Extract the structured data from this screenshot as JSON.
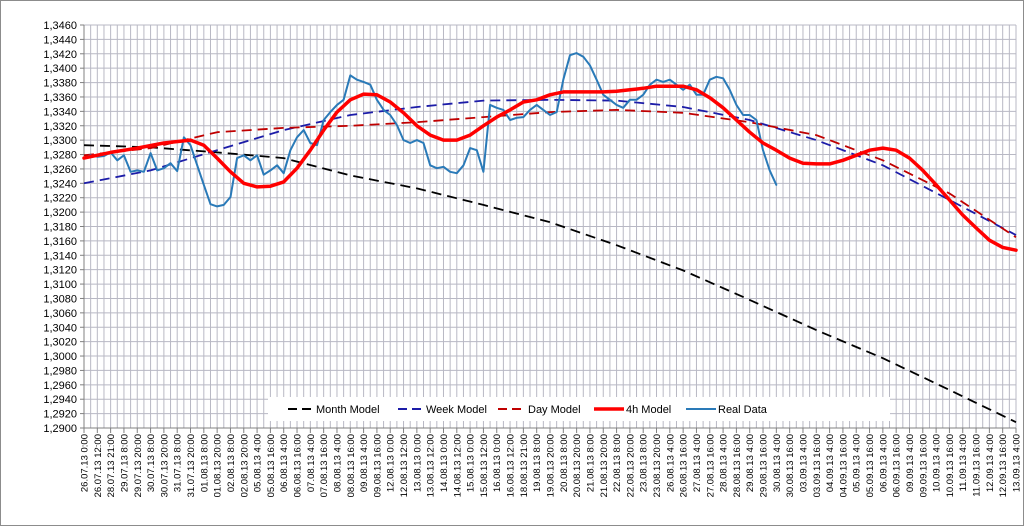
{
  "chart_data": {
    "type": "line",
    "title": "",
    "xlabel": "",
    "ylabel": "",
    "ylim": [
      1.29,
      1.346
    ],
    "y_step": 0.002,
    "grid": true,
    "legend_position": "bottom-center",
    "y_tick_labels": [
      "1,2900",
      "1,2920",
      "1,2940",
      "1,2960",
      "1,2980",
      "1,3000",
      "1,3020",
      "1,3040",
      "1,3060",
      "1,3080",
      "1,3100",
      "1,3120",
      "1,3140",
      "1,3160",
      "1,3180",
      "1,3200",
      "1,3220",
      "1,3240",
      "1,3260",
      "1,3280",
      "1,3300",
      "1,3320",
      "1,3340",
      "1,3360",
      "1,3380",
      "1,3400",
      "1,3420",
      "1,3440",
      "1,3460"
    ],
    "categories": [
      "26.07.13 0:00",
      "26.07.13 12:00",
      "28.07.13 21:00",
      "29.07.13 8:00",
      "29.07.13 20:00",
      "30.07.13 8:00",
      "30.07.13 20:00",
      "31.07.13 8:00",
      "31.07.13 20:00",
      "01.08.13 8:00",
      "01.08.13 20:00",
      "02.08.13 8:00",
      "02.08.13 20:00",
      "05.08.13 4:00",
      "05.08.13 16:00",
      "06.08.13 4:00",
      "06.08.13 16:00",
      "07.08.13 4:00",
      "07.08.13 16:00",
      "08.08.13 4:00",
      "08.08.13 16:00",
      "09.08.13 4:00",
      "09.08.13 16:00",
      "12.08.13 0:00",
      "12.08.13 12:00",
      "13.08.13 0:00",
      "13.08.13 12:00",
      "14.08.13 0:00",
      "14.08.13 12:00",
      "15.08.13 0:00",
      "15.08.13 12:00",
      "16.08.13 0:00",
      "16.08.13 12:00",
      "18.08.13 21:00",
      "19.08.13 8:00",
      "19.08.13 20:00",
      "20.08.13 8:00",
      "20.08.13 20:00",
      "21.08.13 8:00",
      "21.08.13 20:00",
      "22.08.13 8:00",
      "22.08.13 20:00",
      "23.08.13 8:00",
      "23.08.13 20:00",
      "26.08.13 4:00",
      "26.08.13 16:00",
      "27.08.13 4:00",
      "27.08.13 16:00",
      "28.08.13 4:00",
      "28.08.13 16:00",
      "29.08.13 4:00",
      "29.08.13 16:00",
      "30.08.13 4:00",
      "30.08.13 16:00",
      "03.09.13 4:00",
      "03.09.13 16:00",
      "04.09.13 4:00",
      "04.09.13 16:00",
      "05.09.13 4:00",
      "05.09.13 16:00",
      "06.09.13 4:00",
      "06.09.13 16:00",
      "09.09.13 4:00",
      "09.09.13 16:00",
      "10.09.13 4:00",
      "10.09.13 16:00",
      "11.09.13 4:00",
      "11.09.13 16:00",
      "12.09.13 4:00",
      "12.09.13 16:00",
      "13.09.13 4:00"
    ],
    "series": [
      {
        "name": "Month Model",
        "color": "#000000",
        "style": "dashed",
        "points": [
          [
            0,
            1.3293
          ],
          [
            5,
            1.329
          ],
          [
            10,
            1.3283
          ],
          [
            15,
            1.3275
          ],
          [
            20,
            1.3251
          ],
          [
            25,
            1.3233
          ],
          [
            30,
            1.321
          ],
          [
            35,
            1.3186
          ],
          [
            40,
            1.3154
          ],
          [
            45,
            1.3119
          ],
          [
            50,
            1.3078
          ],
          [
            55,
            1.3036
          ],
          [
            60,
            1.2997
          ],
          [
            65,
            1.2953
          ],
          [
            70,
            1.2908
          ]
        ]
      },
      {
        "name": "Week Model",
        "color": "#1c1ca8",
        "style": "dashed",
        "points": [
          [
            0,
            1.324
          ],
          [
            5,
            1.3258
          ],
          [
            10,
            1.3286
          ],
          [
            15,
            1.3314
          ],
          [
            20,
            1.3335
          ],
          [
            25,
            1.3346
          ],
          [
            30,
            1.3355
          ],
          [
            35,
            1.3356
          ],
          [
            40,
            1.3355
          ],
          [
            45,
            1.3346
          ],
          [
            50,
            1.3328
          ],
          [
            55,
            1.33
          ],
          [
            60,
            1.3265
          ],
          [
            65,
            1.3217
          ],
          [
            70,
            1.3168
          ]
        ]
      },
      {
        "name": "Day Model",
        "color": "#c00000",
        "style": "dashed",
        "points": [
          [
            0,
            1.3279
          ],
          [
            5,
            1.3289
          ],
          [
            10,
            1.3311
          ],
          [
            15,
            1.3317
          ],
          [
            20,
            1.332
          ],
          [
            25,
            1.3325
          ],
          [
            30,
            1.3332
          ],
          [
            35,
            1.3339
          ],
          [
            40,
            1.3342
          ],
          [
            45,
            1.3338
          ],
          [
            50,
            1.3325
          ],
          [
            55,
            1.3307
          ],
          [
            60,
            1.3272
          ],
          [
            65,
            1.3226
          ],
          [
            70,
            1.3165
          ]
        ]
      },
      {
        "name": "4h Model",
        "color": "#ff0000",
        "style": "thick",
        "points": [
          [
            0,
            1.3275
          ],
          [
            2,
            1.3283
          ],
          [
            4,
            1.3289
          ],
          [
            6,
            1.3296
          ],
          [
            8,
            1.33
          ],
          [
            9,
            1.3293
          ],
          [
            10,
            1.3275
          ],
          [
            11,
            1.3256
          ],
          [
            12,
            1.324
          ],
          [
            13,
            1.3235
          ],
          [
            14,
            1.3236
          ],
          [
            15,
            1.3242
          ],
          [
            16,
            1.3261
          ],
          [
            17,
            1.3286
          ],
          [
            18,
            1.3314
          ],
          [
            19,
            1.3339
          ],
          [
            20,
            1.3356
          ],
          [
            21,
            1.3364
          ],
          [
            22,
            1.3363
          ],
          [
            23,
            1.3353
          ],
          [
            24,
            1.3338
          ],
          [
            25,
            1.332
          ],
          [
            26,
            1.3307
          ],
          [
            27,
            1.33
          ],
          [
            28,
            1.33
          ],
          [
            29,
            1.3307
          ],
          [
            30,
            1.332
          ],
          [
            31,
            1.3332
          ],
          [
            32,
            1.3342
          ],
          [
            33,
            1.3353
          ],
          [
            34,
            1.3356
          ],
          [
            35,
            1.3363
          ],
          [
            36,
            1.3367
          ],
          [
            37,
            1.3367
          ],
          [
            38,
            1.3367
          ],
          [
            39,
            1.3367
          ],
          [
            40,
            1.3368
          ],
          [
            41,
            1.337
          ],
          [
            42,
            1.3372
          ],
          [
            43,
            1.3375
          ],
          [
            44,
            1.3375
          ],
          [
            45,
            1.3375
          ],
          [
            46,
            1.337
          ],
          [
            47,
            1.3359
          ],
          [
            48,
            1.3345
          ],
          [
            49,
            1.3328
          ],
          [
            50,
            1.3311
          ],
          [
            51,
            1.3296
          ],
          [
            52,
            1.3286
          ],
          [
            53,
            1.3275
          ],
          [
            54,
            1.3268
          ],
          [
            55,
            1.3267
          ],
          [
            56,
            1.3267
          ],
          [
            57,
            1.3272
          ],
          [
            58,
            1.3279
          ],
          [
            59,
            1.3286
          ],
          [
            60,
            1.3289
          ],
          [
            61,
            1.3286
          ],
          [
            62,
            1.3275
          ],
          [
            63,
            1.3258
          ],
          [
            64,
            1.3238
          ],
          [
            65,
            1.3217
          ],
          [
            66,
            1.3196
          ],
          [
            67,
            1.3178
          ],
          [
            68,
            1.3161
          ],
          [
            69,
            1.3151
          ],
          [
            70,
            1.3147
          ]
        ]
      },
      {
        "name": "Real Data",
        "color": "#2a7ab8",
        "style": "solid",
        "points": [
          [
            0,
            1.3275
          ],
          [
            0.5,
            1.3279
          ],
          [
            1,
            1.3277
          ],
          [
            1.5,
            1.3278
          ],
          [
            2,
            1.3283
          ],
          [
            2.5,
            1.3272
          ],
          [
            3,
            1.3279
          ],
          [
            3.5,
            1.3256
          ],
          [
            4,
            1.3258
          ],
          [
            4.5,
            1.3256
          ],
          [
            5,
            1.3282
          ],
          [
            5.5,
            1.3258
          ],
          [
            6,
            1.3261
          ],
          [
            6.5,
            1.3268
          ],
          [
            7,
            1.3257
          ],
          [
            7.5,
            1.3304
          ],
          [
            8,
            1.3293
          ],
          [
            8.5,
            1.3265
          ],
          [
            9,
            1.3238
          ],
          [
            9.5,
            1.3211
          ],
          [
            10,
            1.3208
          ],
          [
            10.5,
            1.321
          ],
          [
            11,
            1.3221
          ],
          [
            11.5,
            1.3275
          ],
          [
            12,
            1.3279
          ],
          [
            12.5,
            1.3272
          ],
          [
            13,
            1.3279
          ],
          [
            13.5,
            1.3252
          ],
          [
            14,
            1.3258
          ],
          [
            14.5,
            1.3265
          ],
          [
            15,
            1.3254
          ],
          [
            15.5,
            1.3286
          ],
          [
            16,
            1.3304
          ],
          [
            16.5,
            1.3314
          ],
          [
            17,
            1.3296
          ],
          [
            17.5,
            1.3293
          ],
          [
            18,
            1.3328
          ],
          [
            18.5,
            1.3339
          ],
          [
            19,
            1.3349
          ],
          [
            19.5,
            1.3356
          ],
          [
            20,
            1.339
          ],
          [
            20.5,
            1.3384
          ],
          [
            21,
            1.3381
          ],
          [
            21.5,
            1.3377
          ],
          [
            22,
            1.3356
          ],
          [
            22.5,
            1.3342
          ],
          [
            23,
            1.3335
          ],
          [
            23.5,
            1.3321
          ],
          [
            24,
            1.33
          ],
          [
            24.5,
            1.3296
          ],
          [
            25,
            1.33
          ],
          [
            25.5,
            1.3296
          ],
          [
            26,
            1.3265
          ],
          [
            26.5,
            1.3261
          ],
          [
            27,
            1.3263
          ],
          [
            27.5,
            1.3256
          ],
          [
            28,
            1.3254
          ],
          [
            28.5,
            1.3265
          ],
          [
            29,
            1.3289
          ],
          [
            29.5,
            1.3286
          ],
          [
            30,
            1.3256
          ],
          [
            30.5,
            1.3349
          ],
          [
            31,
            1.3345
          ],
          [
            31.5,
            1.3342
          ],
          [
            32,
            1.3328
          ],
          [
            32.5,
            1.3331
          ],
          [
            33,
            1.3332
          ],
          [
            33.5,
            1.3342
          ],
          [
            34,
            1.3349
          ],
          [
            34.5,
            1.3342
          ],
          [
            35,
            1.3335
          ],
          [
            35.5,
            1.3339
          ],
          [
            36,
            1.3384
          ],
          [
            36.5,
            1.3418
          ],
          [
            37,
            1.3421
          ],
          [
            37.5,
            1.3416
          ],
          [
            38,
            1.3404
          ],
          [
            38.5,
            1.3384
          ],
          [
            39,
            1.3363
          ],
          [
            39.5,
            1.3356
          ],
          [
            40,
            1.3349
          ],
          [
            40.5,
            1.3345
          ],
          [
            41,
            1.3356
          ],
          [
            41.5,
            1.3356
          ],
          [
            42,
            1.3363
          ],
          [
            42.5,
            1.3377
          ],
          [
            43,
            1.3384
          ],
          [
            43.5,
            1.3381
          ],
          [
            44,
            1.3384
          ],
          [
            44.5,
            1.3377
          ],
          [
            45,
            1.337
          ],
          [
            45.5,
            1.3377
          ],
          [
            46,
            1.3363
          ],
          [
            46.5,
            1.3363
          ],
          [
            47,
            1.3384
          ],
          [
            47.5,
            1.3388
          ],
          [
            48,
            1.3386
          ],
          [
            48.5,
            1.337
          ],
          [
            49,
            1.3349
          ],
          [
            49.5,
            1.3335
          ],
          [
            50,
            1.3335
          ],
          [
            50.5,
            1.3328
          ],
          [
            51,
            1.3286
          ],
          [
            51.5,
            1.3258
          ],
          [
            52,
            1.3238
          ]
        ]
      }
    ]
  }
}
